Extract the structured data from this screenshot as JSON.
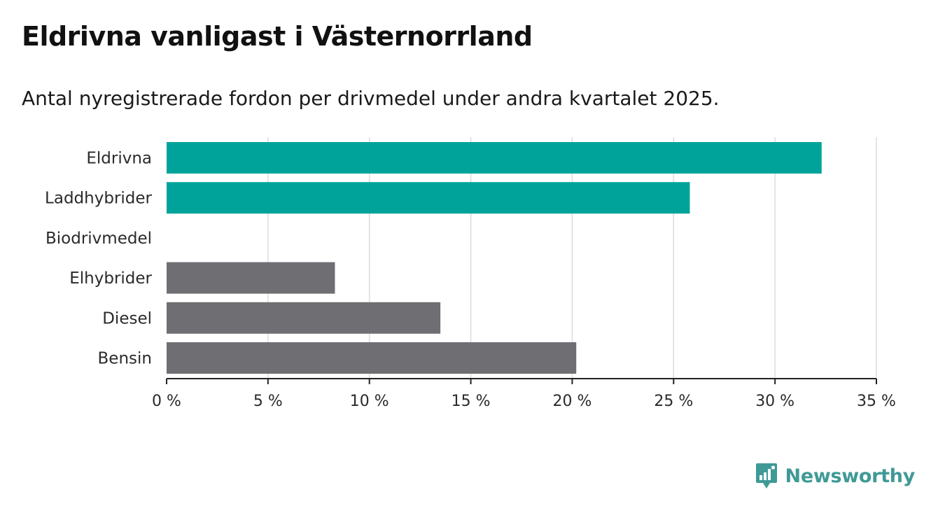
{
  "header": {
    "title": "Eldrivna vanligast i Västernorrland",
    "subtitle": "Antal nyregistrerade fordon per drivmedel under andra kvartalet 2025."
  },
  "brand": {
    "name": "Newsworthy",
    "icon": "newsworthy-logo-icon",
    "color": "#3f9a96"
  },
  "chart_data": {
    "type": "bar",
    "orientation": "horizontal",
    "title": "Eldrivna vanligast i Västernorrland",
    "subtitle": "Antal nyregistrerade fordon per drivmedel under andra kvartalet 2025.",
    "xlabel": "",
    "ylabel": "",
    "categories": [
      "Eldrivna",
      "Laddhybrider",
      "Biodrivmedel",
      "Elhybrider",
      "Diesel",
      "Bensin"
    ],
    "values": [
      32.3,
      25.8,
      0,
      8.3,
      13.5,
      20.2
    ],
    "bar_colors": [
      "#00a39a",
      "#00a39a",
      "#6f6e73",
      "#6f6e73",
      "#6f6e73",
      "#6f6e73"
    ],
    "xlim": [
      0,
      35
    ],
    "x_ticks": [
      0,
      5,
      10,
      15,
      20,
      25,
      30,
      35
    ],
    "x_tick_labels": [
      "0 %",
      "5 %",
      "10 %",
      "15 %",
      "20 %",
      "25 %",
      "30 %",
      "35 %"
    ],
    "grid": true,
    "legend": "none"
  }
}
